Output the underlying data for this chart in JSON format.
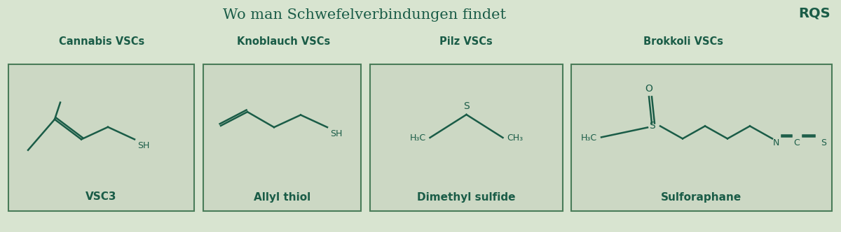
{
  "bg_color": "#d8e4d0",
  "dark_green": "#1a5c47",
  "title": "Wo man Schwefelverbindungen findet",
  "title_fontsize": 15,
  "logo": "RQS",
  "categories": [
    "Cannabis VSCs",
    "Knoblauch VSCs",
    "Pilz VSCs",
    "Brokkoli VSCs"
  ],
  "compound_names": [
    "VSC3",
    "Allyl thiol",
    "Dimethyl sulfide",
    "Sulforaphane"
  ],
  "box_color": "#ccd8c4",
  "box_edge_color": "#4a7c59",
  "figsize": [
    12.0,
    3.32
  ],
  "dpi": 100
}
